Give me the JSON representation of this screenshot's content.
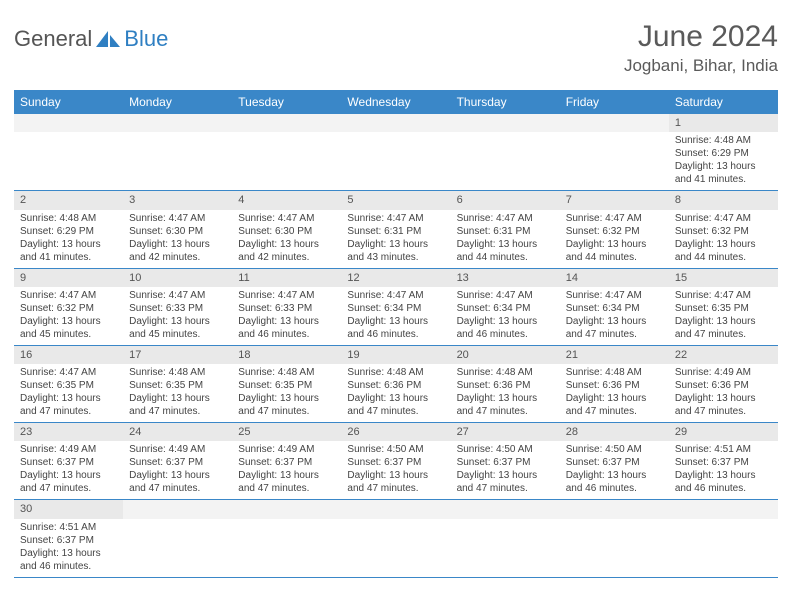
{
  "logo": {
    "part1": "General",
    "part2": "Blue"
  },
  "title": "June 2024",
  "location": "Jogbani, Bihar, India",
  "colors": {
    "header_bg": "#3a87c8",
    "header_text": "#ffffff",
    "daynum_bg": "#e9e9e9",
    "row_border": "#3a87c8",
    "text": "#444444",
    "logo_gray": "#555555",
    "logo_blue": "#2f7fc2"
  },
  "layout": {
    "columns": 7,
    "rows": 6,
    "leading_blanks": 6,
    "total_days": 30
  },
  "day_headers": [
    "Sunday",
    "Monday",
    "Tuesday",
    "Wednesday",
    "Thursday",
    "Friday",
    "Saturday"
  ],
  "days": [
    {
      "n": 1,
      "sunrise": "4:48 AM",
      "sunset": "6:29 PM",
      "daylight": "13 hours and 41 minutes."
    },
    {
      "n": 2,
      "sunrise": "4:48 AM",
      "sunset": "6:29 PM",
      "daylight": "13 hours and 41 minutes."
    },
    {
      "n": 3,
      "sunrise": "4:47 AM",
      "sunset": "6:30 PM",
      "daylight": "13 hours and 42 minutes."
    },
    {
      "n": 4,
      "sunrise": "4:47 AM",
      "sunset": "6:30 PM",
      "daylight": "13 hours and 42 minutes."
    },
    {
      "n": 5,
      "sunrise": "4:47 AM",
      "sunset": "6:31 PM",
      "daylight": "13 hours and 43 minutes."
    },
    {
      "n": 6,
      "sunrise": "4:47 AM",
      "sunset": "6:31 PM",
      "daylight": "13 hours and 44 minutes."
    },
    {
      "n": 7,
      "sunrise": "4:47 AM",
      "sunset": "6:32 PM",
      "daylight": "13 hours and 44 minutes."
    },
    {
      "n": 8,
      "sunrise": "4:47 AM",
      "sunset": "6:32 PM",
      "daylight": "13 hours and 44 minutes."
    },
    {
      "n": 9,
      "sunrise": "4:47 AM",
      "sunset": "6:32 PM",
      "daylight": "13 hours and 45 minutes."
    },
    {
      "n": 10,
      "sunrise": "4:47 AM",
      "sunset": "6:33 PM",
      "daylight": "13 hours and 45 minutes."
    },
    {
      "n": 11,
      "sunrise": "4:47 AM",
      "sunset": "6:33 PM",
      "daylight": "13 hours and 46 minutes."
    },
    {
      "n": 12,
      "sunrise": "4:47 AM",
      "sunset": "6:34 PM",
      "daylight": "13 hours and 46 minutes."
    },
    {
      "n": 13,
      "sunrise": "4:47 AM",
      "sunset": "6:34 PM",
      "daylight": "13 hours and 46 minutes."
    },
    {
      "n": 14,
      "sunrise": "4:47 AM",
      "sunset": "6:34 PM",
      "daylight": "13 hours and 47 minutes."
    },
    {
      "n": 15,
      "sunrise": "4:47 AM",
      "sunset": "6:35 PM",
      "daylight": "13 hours and 47 minutes."
    },
    {
      "n": 16,
      "sunrise": "4:47 AM",
      "sunset": "6:35 PM",
      "daylight": "13 hours and 47 minutes."
    },
    {
      "n": 17,
      "sunrise": "4:48 AM",
      "sunset": "6:35 PM",
      "daylight": "13 hours and 47 minutes."
    },
    {
      "n": 18,
      "sunrise": "4:48 AM",
      "sunset": "6:35 PM",
      "daylight": "13 hours and 47 minutes."
    },
    {
      "n": 19,
      "sunrise": "4:48 AM",
      "sunset": "6:36 PM",
      "daylight": "13 hours and 47 minutes."
    },
    {
      "n": 20,
      "sunrise": "4:48 AM",
      "sunset": "6:36 PM",
      "daylight": "13 hours and 47 minutes."
    },
    {
      "n": 21,
      "sunrise": "4:48 AM",
      "sunset": "6:36 PM",
      "daylight": "13 hours and 47 minutes."
    },
    {
      "n": 22,
      "sunrise": "4:49 AM",
      "sunset": "6:36 PM",
      "daylight": "13 hours and 47 minutes."
    },
    {
      "n": 23,
      "sunrise": "4:49 AM",
      "sunset": "6:37 PM",
      "daylight": "13 hours and 47 minutes."
    },
    {
      "n": 24,
      "sunrise": "4:49 AM",
      "sunset": "6:37 PM",
      "daylight": "13 hours and 47 minutes."
    },
    {
      "n": 25,
      "sunrise": "4:49 AM",
      "sunset": "6:37 PM",
      "daylight": "13 hours and 47 minutes."
    },
    {
      "n": 26,
      "sunrise": "4:50 AM",
      "sunset": "6:37 PM",
      "daylight": "13 hours and 47 minutes."
    },
    {
      "n": 27,
      "sunrise": "4:50 AM",
      "sunset": "6:37 PM",
      "daylight": "13 hours and 47 minutes."
    },
    {
      "n": 28,
      "sunrise": "4:50 AM",
      "sunset": "6:37 PM",
      "daylight": "13 hours and 46 minutes."
    },
    {
      "n": 29,
      "sunrise": "4:51 AM",
      "sunset": "6:37 PM",
      "daylight": "13 hours and 46 minutes."
    },
    {
      "n": 30,
      "sunrise": "4:51 AM",
      "sunset": "6:37 PM",
      "daylight": "13 hours and 46 minutes."
    }
  ],
  "labels": {
    "sunrise": "Sunrise:",
    "sunset": "Sunset:",
    "daylight": "Daylight:"
  }
}
